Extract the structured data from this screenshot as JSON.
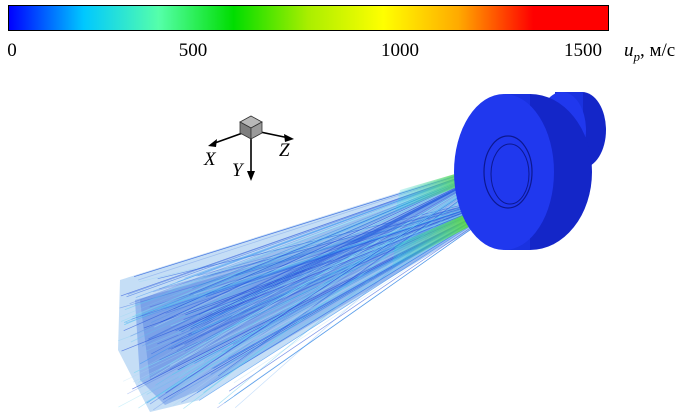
{
  "colorbar": {
    "gradient": [
      "#0000ff",
      "#00c8ff",
      "#55ffaa",
      "#00dd00",
      "#aaee00",
      "#ffff00",
      "#ffaa00",
      "#ff0000",
      "#ff0000"
    ],
    "ticks": [
      "0",
      "500",
      "1000",
      "1500"
    ],
    "tick_values": [
      0,
      500,
      1000,
      1500
    ],
    "range": [
      0,
      1500
    ],
    "quantity_symbol": "u",
    "quantity_subscript": "p",
    "unit": ", м/с"
  },
  "axes_triad": {
    "x_label": "X",
    "y_label": "Y",
    "z_label": "Z"
  },
  "colors": {
    "nozzle_body": "#1a32e0",
    "nozzle_dark": "#1020b0",
    "spray_base": "#3c6ee6",
    "spray_mid": "#32c8dc"
  }
}
